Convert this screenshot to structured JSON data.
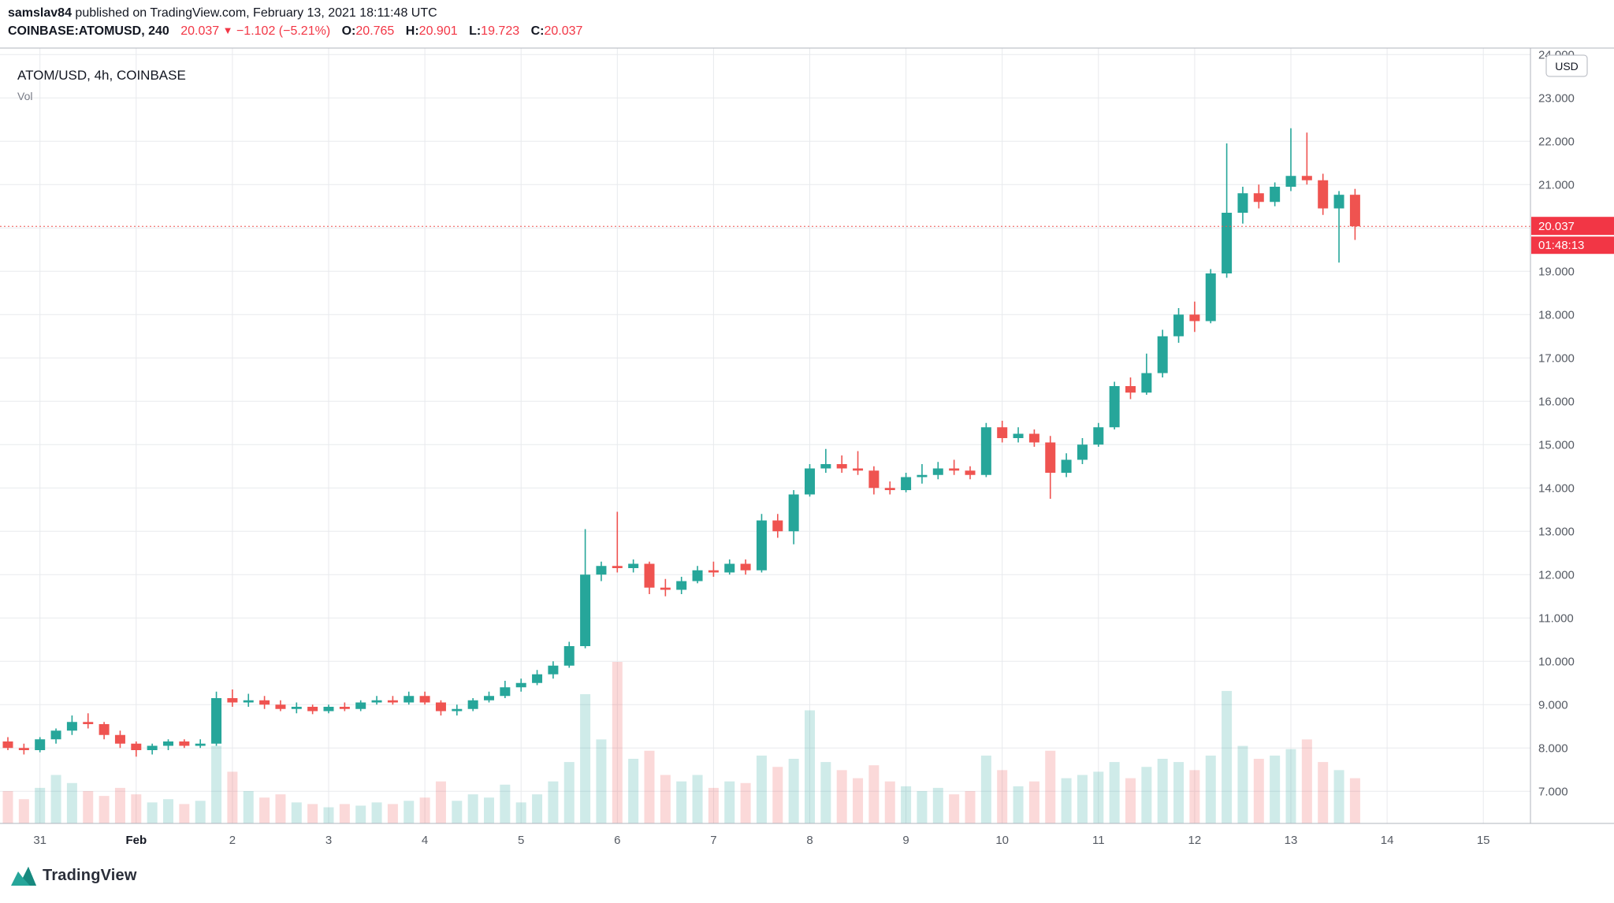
{
  "header": {
    "author": "samslav84",
    "published": "published on TradingView.com, February 13, 2021 18:11:48 UTC",
    "symbol": "COINBASE:ATOMUSD, 240",
    "last_price": "20.037",
    "direction_arrow": "▼",
    "change": "−1.102 (−5.21%)",
    "ohlc": {
      "o_label": "O:",
      "o_value": "20.765",
      "h_label": "H:",
      "h_value": "20.901",
      "l_label": "L:",
      "l_value": "19.723",
      "c_label": "C:",
      "c_value": "20.037"
    }
  },
  "chart": {
    "legend_title": "ATOM/USD, 4h, COINBASE",
    "legend_vol_label": "Vol",
    "currency_badge": "USD",
    "price_tag": "20.037",
    "countdown": "01:48:13",
    "colors": {
      "up": "#26a69a",
      "down": "#ef5350",
      "tag_bg": "#f23645",
      "grid": "#e8eaed",
      "axis_border": "#b2b5be",
      "axis_text": "#555a63",
      "emphasis_text": "#131722",
      "price_line": "#ef5350"
    }
  },
  "chart_data": {
    "type": "candlestick",
    "title": "ATOM/USD, 4h, COINBASE",
    "symbol": "COINBASE:ATOMUSD",
    "interval": "240",
    "current_price": 20.037,
    "ylim": [
      6.3,
      24.15
    ],
    "y_ticks": [
      24,
      23,
      22,
      21,
      20,
      19,
      18,
      17,
      16,
      15,
      14,
      13,
      12,
      11,
      10,
      9,
      8,
      7
    ],
    "x_ticks": [
      {
        "i": 2,
        "label": "31"
      },
      {
        "i": 8,
        "label": "Feb",
        "emphasis": true
      },
      {
        "i": 14,
        "label": "2"
      },
      {
        "i": 20,
        "label": "3"
      },
      {
        "i": 26,
        "label": "4"
      },
      {
        "i": 32,
        "label": "5"
      },
      {
        "i": 38,
        "label": "6"
      },
      {
        "i": 44,
        "label": "7"
      },
      {
        "i": 50,
        "label": "8"
      },
      {
        "i": 56,
        "label": "9"
      },
      {
        "i": 62,
        "label": "10"
      },
      {
        "i": 68,
        "label": "11"
      },
      {
        "i": 74,
        "label": "12"
      },
      {
        "i": 80,
        "label": "13"
      },
      {
        "i": 86,
        "label": "14"
      },
      {
        "i": 92,
        "label": "15"
      }
    ],
    "candles_ohlcv": [
      [
        8.15,
        8.25,
        7.95,
        8.0,
        20
      ],
      [
        8.0,
        8.1,
        7.85,
        7.95,
        15
      ],
      [
        7.95,
        8.25,
        7.9,
        8.2,
        22
      ],
      [
        8.2,
        8.45,
        8.1,
        8.4,
        30
      ],
      [
        8.4,
        8.75,
        8.3,
        8.6,
        25
      ],
      [
        8.6,
        8.8,
        8.45,
        8.55,
        20
      ],
      [
        8.55,
        8.6,
        8.2,
        8.3,
        17
      ],
      [
        8.3,
        8.4,
        8.0,
        8.1,
        22
      ],
      [
        8.1,
        8.15,
        7.8,
        7.95,
        18
      ],
      [
        7.95,
        8.1,
        7.85,
        8.05,
        13
      ],
      [
        8.05,
        8.2,
        7.95,
        8.15,
        15
      ],
      [
        8.15,
        8.2,
        8.0,
        8.05,
        12
      ],
      [
        8.05,
        8.2,
        8.0,
        8.1,
        14
      ],
      [
        8.1,
        9.3,
        8.05,
        9.15,
        48
      ],
      [
        9.15,
        9.35,
        8.95,
        9.05,
        32
      ],
      [
        9.05,
        9.25,
        8.95,
        9.1,
        20
      ],
      [
        9.1,
        9.2,
        8.9,
        9.0,
        16
      ],
      [
        9.0,
        9.1,
        8.85,
        8.9,
        18
      ],
      [
        8.9,
        9.05,
        8.8,
        8.95,
        13
      ],
      [
        8.95,
        9.0,
        8.78,
        8.85,
        12
      ],
      [
        8.85,
        9.0,
        8.8,
        8.95,
        10
      ],
      [
        8.95,
        9.05,
        8.85,
        8.9,
        12
      ],
      [
        8.9,
        9.1,
        8.85,
        9.05,
        11
      ],
      [
        9.05,
        9.2,
        9.0,
        9.1,
        13
      ],
      [
        9.1,
        9.2,
        9.0,
        9.05,
        12
      ],
      [
        9.05,
        9.3,
        9.0,
        9.2,
        14
      ],
      [
        9.2,
        9.3,
        9.0,
        9.05,
        16
      ],
      [
        9.05,
        9.1,
        8.75,
        8.85,
        26
      ],
      [
        8.85,
        9.0,
        8.75,
        8.9,
        14
      ],
      [
        8.9,
        9.15,
        8.85,
        9.1,
        18
      ],
      [
        9.1,
        9.3,
        9.05,
        9.2,
        16
      ],
      [
        9.2,
        9.55,
        9.15,
        9.4,
        24
      ],
      [
        9.4,
        9.6,
        9.3,
        9.5,
        13
      ],
      [
        9.5,
        9.8,
        9.45,
        9.7,
        18
      ],
      [
        9.7,
        10.0,
        9.6,
        9.9,
        26
      ],
      [
        9.9,
        10.45,
        9.85,
        10.35,
        38
      ],
      [
        10.35,
        13.05,
        10.3,
        12.0,
        80
      ],
      [
        12.0,
        12.3,
        11.85,
        12.2,
        52
      ],
      [
        12.2,
        13.45,
        12.05,
        12.15,
        100
      ],
      [
        12.15,
        12.35,
        12.05,
        12.25,
        40
      ],
      [
        12.25,
        12.3,
        11.55,
        11.7,
        45
      ],
      [
        11.7,
        11.9,
        11.5,
        11.65,
        30
      ],
      [
        11.65,
        11.95,
        11.55,
        11.85,
        26
      ],
      [
        11.85,
        12.2,
        11.8,
        12.1,
        30
      ],
      [
        12.1,
        12.3,
        11.95,
        12.05,
        22
      ],
      [
        12.05,
        12.35,
        12.0,
        12.25,
        26
      ],
      [
        12.25,
        12.35,
        12.0,
        12.1,
        25
      ],
      [
        12.1,
        13.4,
        12.05,
        13.25,
        42
      ],
      [
        13.25,
        13.4,
        12.85,
        13.0,
        35
      ],
      [
        13.0,
        13.95,
        12.7,
        13.85,
        40
      ],
      [
        13.85,
        14.55,
        13.8,
        14.45,
        70
      ],
      [
        14.45,
        14.9,
        14.35,
        14.55,
        38
      ],
      [
        14.55,
        14.75,
        14.35,
        14.45,
        33
      ],
      [
        14.45,
        14.85,
        14.3,
        14.4,
        28
      ],
      [
        14.4,
        14.5,
        13.85,
        14.0,
        36
      ],
      [
        14.0,
        14.15,
        13.85,
        13.95,
        26
      ],
      [
        13.95,
        14.35,
        13.9,
        14.25,
        23
      ],
      [
        14.25,
        14.55,
        14.1,
        14.3,
        20
      ],
      [
        14.3,
        14.6,
        14.2,
        14.45,
        22
      ],
      [
        14.45,
        14.65,
        14.3,
        14.4,
        18
      ],
      [
        14.4,
        14.5,
        14.2,
        14.3,
        20
      ],
      [
        14.3,
        15.5,
        14.25,
        15.4,
        42
      ],
      [
        15.4,
        15.55,
        15.05,
        15.15,
        33
      ],
      [
        15.15,
        15.4,
        15.05,
        15.25,
        23
      ],
      [
        15.25,
        15.35,
        14.95,
        15.05,
        26
      ],
      [
        15.05,
        15.2,
        13.75,
        14.35,
        45
      ],
      [
        14.35,
        14.8,
        14.25,
        14.65,
        28
      ],
      [
        14.65,
        15.15,
        14.55,
        15.0,
        30
      ],
      [
        15.0,
        15.5,
        14.95,
        15.4,
        32
      ],
      [
        15.4,
        16.45,
        15.35,
        16.35,
        38
      ],
      [
        16.35,
        16.55,
        16.05,
        16.2,
        28
      ],
      [
        16.2,
        17.1,
        16.15,
        16.65,
        35
      ],
      [
        16.65,
        17.65,
        16.55,
        17.5,
        40
      ],
      [
        17.5,
        18.15,
        17.35,
        18.0,
        38
      ],
      [
        18.0,
        18.3,
        17.6,
        17.85,
        33
      ],
      [
        17.85,
        19.05,
        17.8,
        18.95,
        42
      ],
      [
        18.95,
        21.95,
        18.85,
        20.35,
        82
      ],
      [
        20.35,
        20.95,
        20.1,
        20.8,
        48
      ],
      [
        20.8,
        21.0,
        20.45,
        20.6,
        40
      ],
      [
        20.6,
        21.05,
        20.5,
        20.95,
        42
      ],
      [
        20.95,
        22.3,
        20.85,
        21.2,
        46
      ],
      [
        21.2,
        22.2,
        21.0,
        21.1,
        52
      ],
      [
        21.1,
        21.25,
        20.3,
        20.45,
        38
      ],
      [
        20.45,
        20.85,
        19.2,
        20.765,
        33
      ],
      [
        20.765,
        20.901,
        19.723,
        20.037,
        28
      ]
    ]
  },
  "footer": {
    "logo_text": "TradingView"
  }
}
